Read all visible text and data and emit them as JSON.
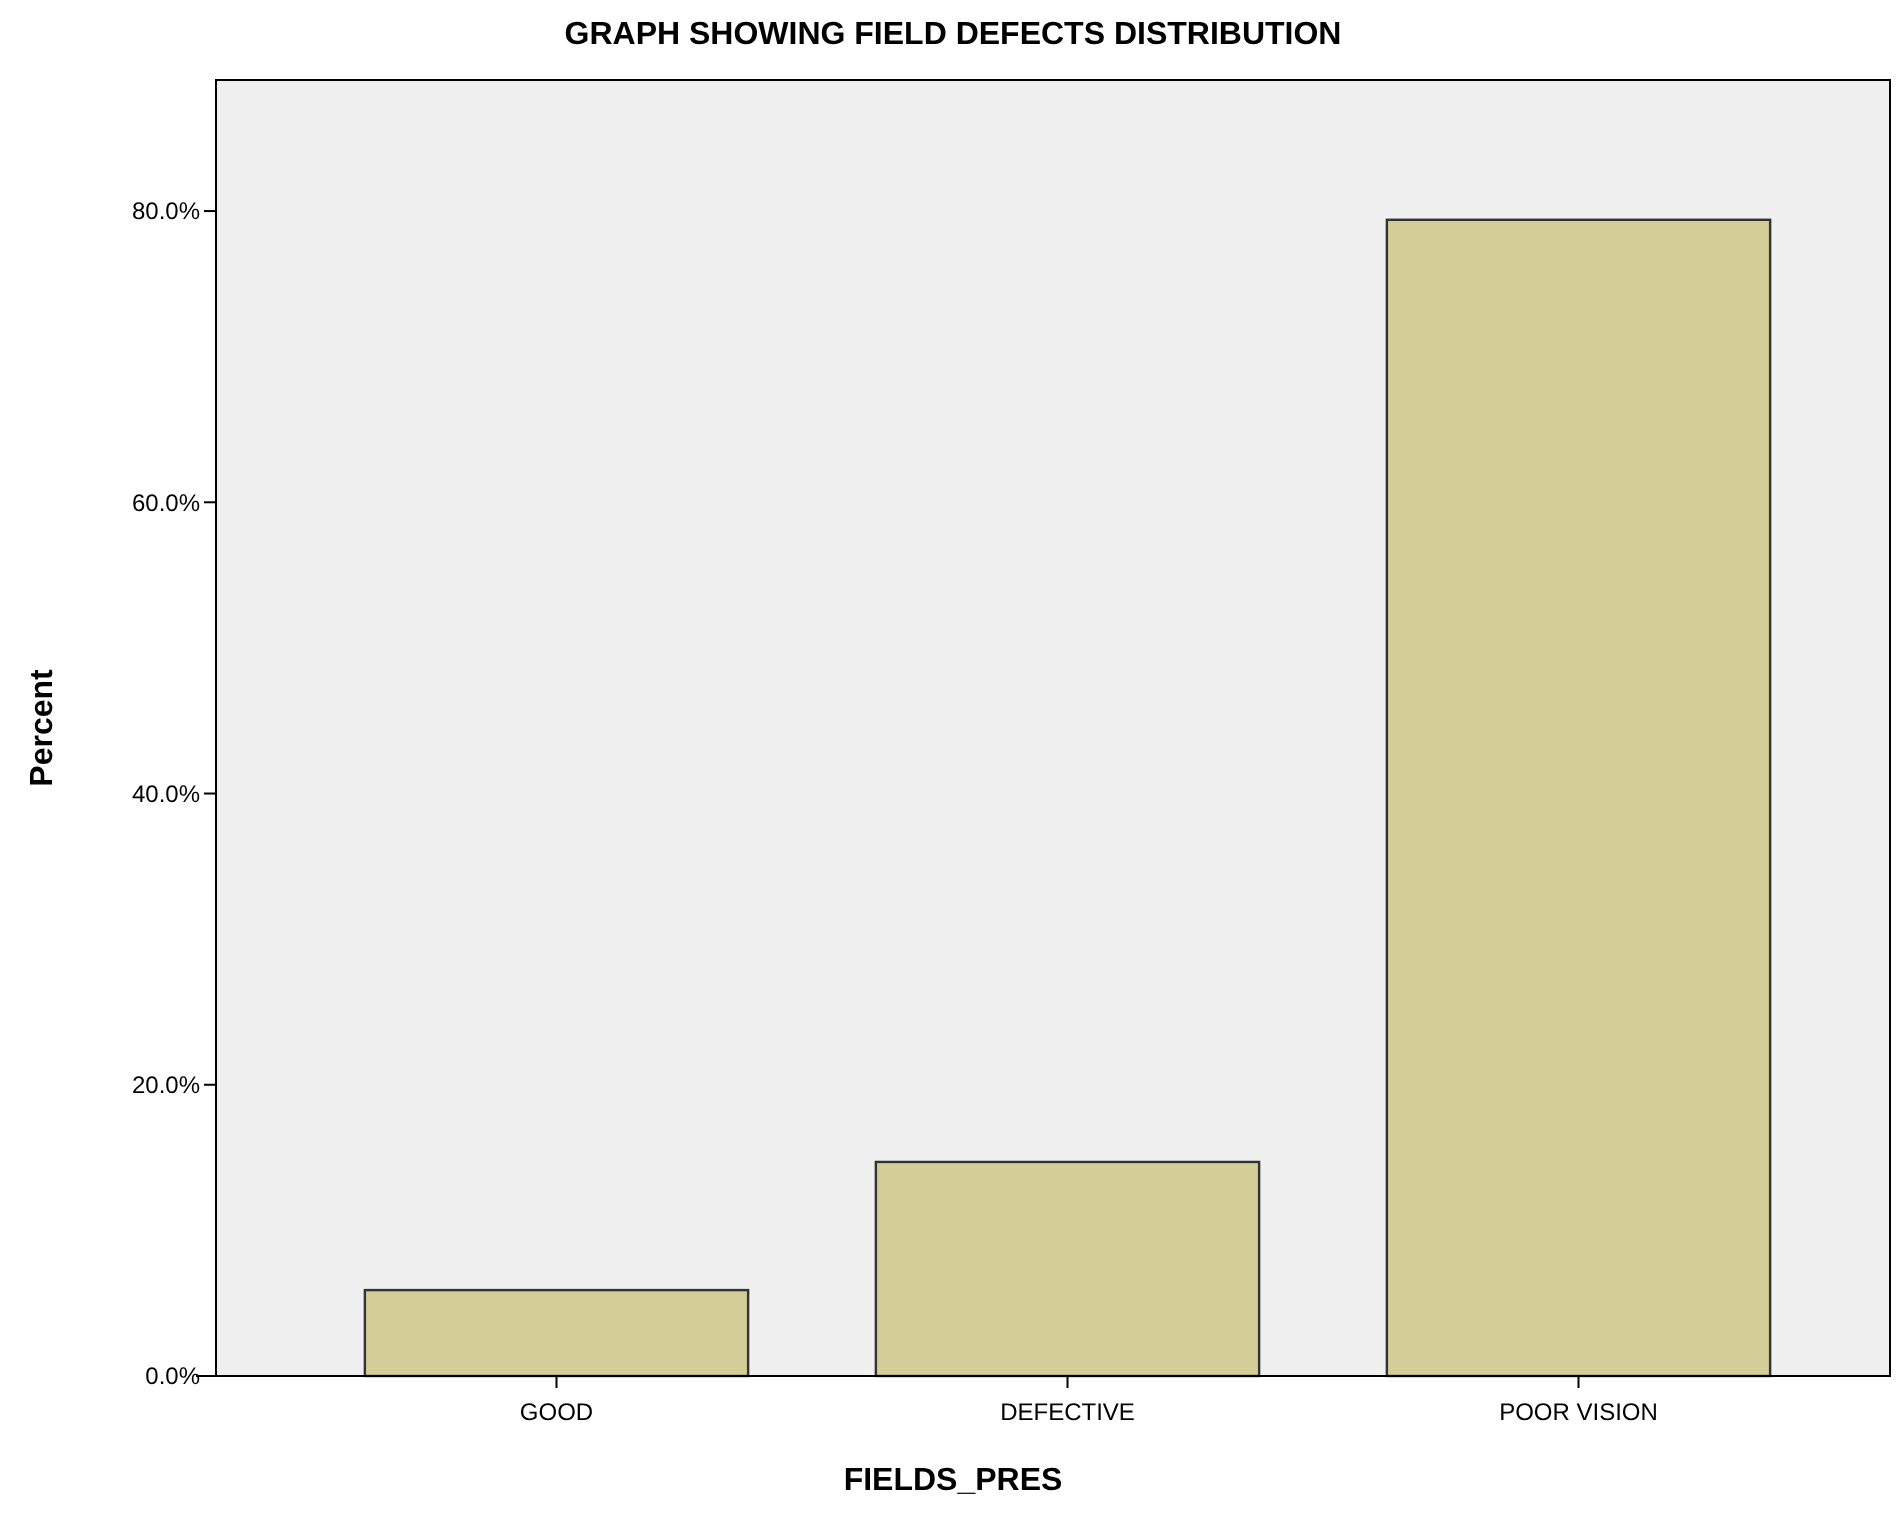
{
  "chart_data": {
    "type": "bar",
    "title": "GRAPH SHOWING FIELD DEFECTS DISTRIBUTION",
    "xlabel": "FIELDS_PRES",
    "ylabel": "Percent",
    "categories": [
      "GOOD",
      "DEFECTIVE",
      "POOR VISION"
    ],
    "values": [
      5.9,
      14.7,
      79.4
    ],
    "color": "#d3ce97",
    "ylim": [
      0,
      89
    ],
    "yticks": [
      {
        "value": 0,
        "label": "0.0%"
      },
      {
        "value": 20,
        "label": "20.0%"
      },
      {
        "value": 40,
        "label": "40.0%"
      },
      {
        "value": 60,
        "label": "60.0%"
      },
      {
        "value": 80,
        "label": "80.0%"
      }
    ],
    "grid": false
  }
}
